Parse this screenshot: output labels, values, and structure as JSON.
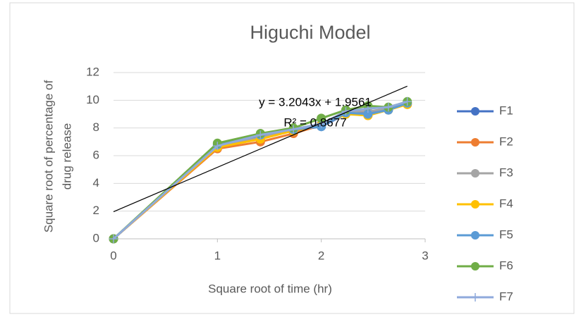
{
  "chart_data": {
    "type": "line",
    "title": "Higuchi Model",
    "xlabel": "Square root of time (hr)",
    "ylabel": [
      "Square root of percentage of",
      "drug release"
    ],
    "x": [
      0,
      1,
      1.414,
      1.732,
      2,
      2.236,
      2.449,
      2.646,
      2.828
    ],
    "series": [
      {
        "name": "F1",
        "color": "#4472c4",
        "marker": "circle",
        "values": [
          0,
          6.6,
          7.4,
          7.8,
          8.1,
          9.0,
          9.1,
          9.3,
          9.8
        ]
      },
      {
        "name": "F2",
        "color": "#ed7d31",
        "marker": "circle",
        "values": [
          0,
          6.5,
          7.0,
          7.6,
          8.2,
          9.1,
          8.9,
          9.4,
          9.7
        ]
      },
      {
        "name": "F3",
        "color": "#a5a5a5",
        "marker": "circle",
        "values": [
          0,
          6.7,
          7.3,
          7.9,
          8.3,
          9.2,
          9.2,
          9.4,
          9.8
        ]
      },
      {
        "name": "F4",
        "color": "#ffc000",
        "marker": "circle",
        "values": [
          0,
          6.6,
          7.2,
          7.8,
          8.2,
          9.0,
          8.9,
          9.3,
          9.7
        ]
      },
      {
        "name": "F5",
        "color": "#5b9bd5",
        "marker": "circle",
        "values": [
          0,
          6.8,
          7.5,
          7.9,
          8.1,
          9.1,
          9.0,
          9.3,
          9.8
        ]
      },
      {
        "name": "F6",
        "color": "#70ad47",
        "marker": "circle",
        "values": [
          0,
          6.9,
          7.6,
          8.0,
          8.7,
          9.3,
          9.6,
          9.5,
          9.9
        ]
      },
      {
        "name": "F7",
        "color": "#8faadc",
        "marker": "plus",
        "values": [
          0,
          6.7,
          7.5,
          7.9,
          8.3,
          9.2,
          9.4,
          9.5,
          9.9
        ]
      }
    ],
    "trendline": {
      "slope": 3.2043,
      "intercept": 1.9561,
      "color": "#000000",
      "equation": "y = 3.2043x + 1.9561",
      "r_squared": "R² = 0.8677"
    },
    "xlim": [
      0,
      3
    ],
    "xticks": [
      0,
      1,
      2,
      3
    ],
    "ylim": [
      0,
      12
    ],
    "yticks": [
      0,
      2,
      4,
      6,
      8,
      10,
      12
    ],
    "grid": true,
    "legend": "right"
  }
}
